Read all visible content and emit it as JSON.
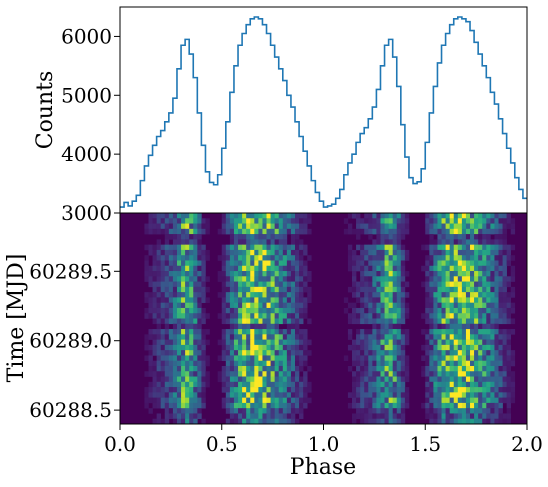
{
  "chart_data": [
    {
      "type": "line",
      "subtype": "step",
      "xlabel": "",
      "ylabel": "Counts",
      "xlim": [
        0.0,
        2.0
      ],
      "ylim": [
        3000,
        6500
      ],
      "yticks": [
        3000,
        4000,
        5000,
        6000
      ],
      "ytick_labels": [
        "3000",
        "4000",
        "5000",
        "6000"
      ],
      "grid": false,
      "series": [
        {
          "color": "#1f77b4",
          "x": [
            0.0,
            0.02,
            0.04,
            0.06,
            0.08,
            0.1,
            0.12,
            0.14,
            0.16,
            0.18,
            0.2,
            0.22,
            0.24,
            0.26,
            0.28,
            0.3,
            0.32,
            0.34,
            0.36,
            0.38,
            0.4,
            0.42,
            0.44,
            0.46,
            0.48,
            0.5,
            0.52,
            0.54,
            0.56,
            0.58,
            0.6,
            0.62,
            0.64,
            0.66,
            0.68,
            0.7,
            0.72,
            0.74,
            0.76,
            0.78,
            0.8,
            0.82,
            0.84,
            0.86,
            0.88,
            0.9,
            0.92,
            0.94,
            0.96,
            0.98,
            1.0,
            1.02,
            1.04,
            1.06,
            1.08,
            1.1,
            1.12,
            1.14,
            1.16,
            1.18,
            1.2,
            1.22,
            1.24,
            1.26,
            1.28,
            1.3,
            1.32,
            1.34,
            1.36,
            1.38,
            1.4,
            1.42,
            1.44,
            1.46,
            1.48,
            1.5,
            1.52,
            1.54,
            1.56,
            1.58,
            1.6,
            1.62,
            1.64,
            1.66,
            1.68,
            1.7,
            1.72,
            1.74,
            1.76,
            1.78,
            1.8,
            1.82,
            1.84,
            1.86,
            1.88,
            1.9,
            1.92,
            1.94,
            1.96,
            1.98
          ],
          "values": [
            3100,
            3180,
            3120,
            3200,
            3300,
            3550,
            3800,
            3980,
            4150,
            4300,
            4400,
            4550,
            4700,
            4950,
            5450,
            5850,
            5950,
            5700,
            5300,
            4700,
            4150,
            3700,
            3520,
            3480,
            3650,
            4100,
            4550,
            5050,
            5500,
            5850,
            6050,
            6200,
            6300,
            6330,
            6300,
            6200,
            6050,
            5850,
            5650,
            5450,
            5250,
            5000,
            4800,
            4550,
            4300,
            4050,
            3800,
            3550,
            3350,
            3200,
            3100,
            3120,
            3150,
            3250,
            3400,
            3650,
            3850,
            4000,
            4200,
            4350,
            4450,
            4600,
            4800,
            5100,
            5500,
            5850,
            5950,
            5650,
            5150,
            4500,
            3950,
            3600,
            3500,
            3530,
            3750,
            4200,
            4700,
            5150,
            5550,
            5850,
            6050,
            6200,
            6300,
            6330,
            6300,
            6250,
            6100,
            5900,
            5700,
            5500,
            5300,
            5050,
            4850,
            4600,
            4350,
            4100,
            3850,
            3600,
            3400,
            3250
          ]
        }
      ]
    },
    {
      "type": "heatmap",
      "xlabel": "Phase",
      "ylabel": "Time [MJD]",
      "xlim": [
        0.0,
        2.0
      ],
      "ylim": [
        60288.4,
        60289.92
      ],
      "xticks": [
        0.0,
        0.5,
        1.0,
        1.5,
        2.0
      ],
      "xtick_labels": [
        "0.0",
        "0.5",
        "1.0",
        "1.5",
        "2.0"
      ],
      "yticks": [
        60288.5,
        60289.0,
        60289.5
      ],
      "ytick_labels": [
        "60288.5",
        "60289.0",
        "60289.5"
      ],
      "colormap": "viridis",
      "bins_x": 100,
      "bins_y": 40,
      "colors": {
        "background": "#440154"
      }
    }
  ]
}
